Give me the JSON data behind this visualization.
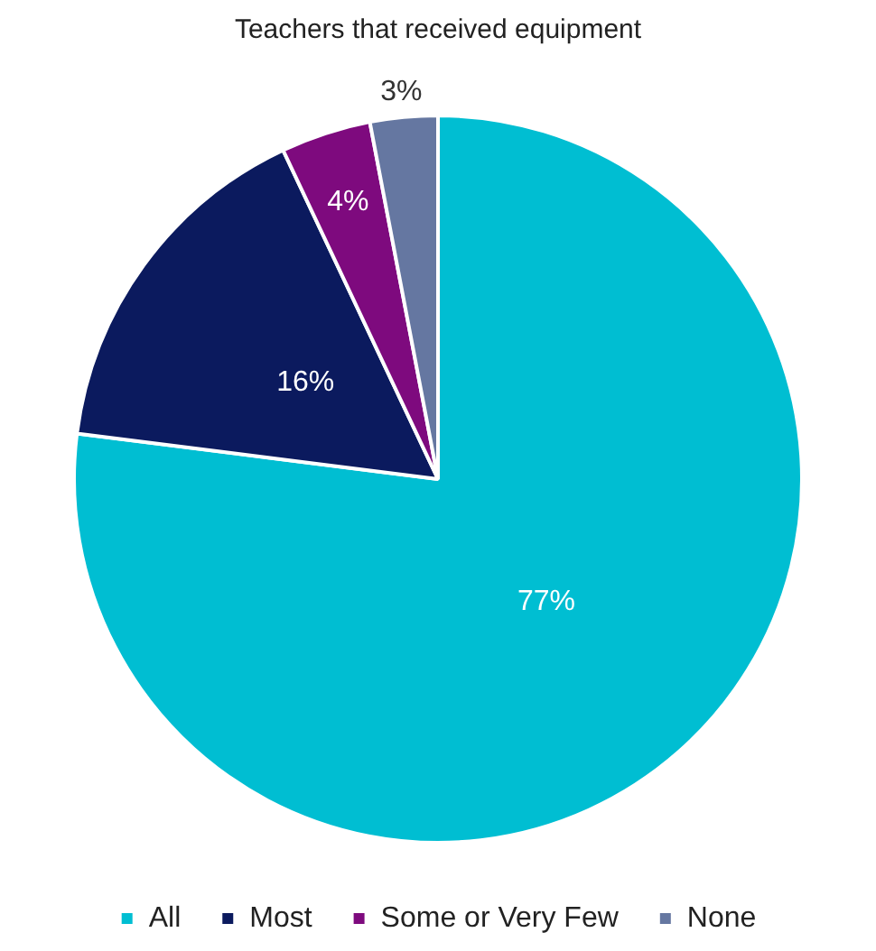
{
  "chart_data": {
    "type": "pie",
    "title": "Teachers that received equipment",
    "categories": [
      "All",
      "Most",
      "Some or Very Few",
      "None"
    ],
    "values": [
      77,
      16,
      4,
      3
    ],
    "value_labels": [
      "77%",
      "16%",
      "4%",
      "3%"
    ],
    "colors": [
      "#00bed2",
      "#0b1a5e",
      "#7e0a7e",
      "#6577a1"
    ],
    "legend": "bottom"
  }
}
